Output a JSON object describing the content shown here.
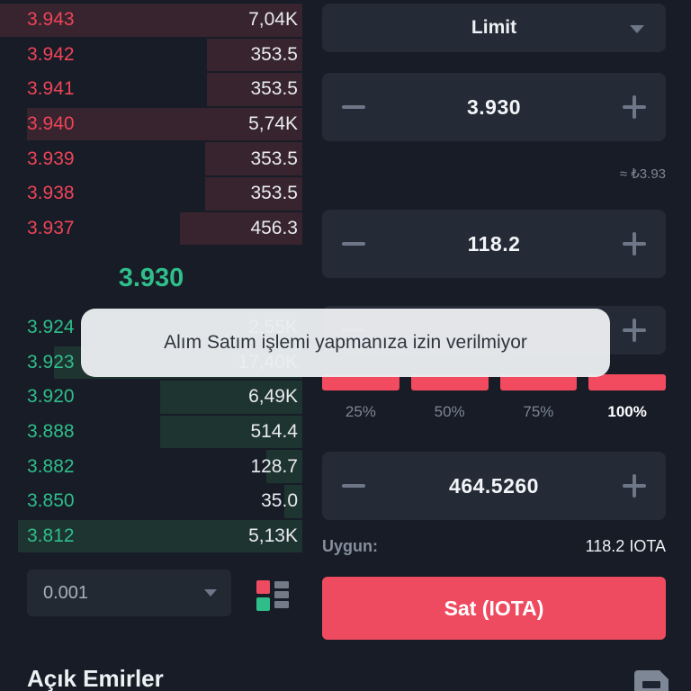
{
  "order_book": {
    "asks": [
      {
        "price": "3.943",
        "amount": "7,04K",
        "depth": 336
      },
      {
        "price": "3.942",
        "amount": "353.5",
        "depth": 106
      },
      {
        "price": "3.941",
        "amount": "353.5",
        "depth": 106
      },
      {
        "price": "3.940",
        "amount": "5,74K",
        "depth": 306
      },
      {
        "price": "3.939",
        "amount": "353.5",
        "depth": 108
      },
      {
        "price": "3.938",
        "amount": "353.5",
        "depth": 108
      },
      {
        "price": "3.937",
        "amount": "456.3",
        "depth": 136
      }
    ],
    "last_price": "3.930",
    "bids": [
      {
        "price": "3.924",
        "amount": "2,55K",
        "depth": 241
      },
      {
        "price": "3.923",
        "amount": "17,40K",
        "depth": 276
      },
      {
        "price": "3.920",
        "amount": "6,49K",
        "depth": 158
      },
      {
        "price": "3.888",
        "amount": "514.4",
        "depth": 158
      },
      {
        "price": "3.882",
        "amount": "128.7",
        "depth": 40
      },
      {
        "price": "3.850",
        "amount": "35.0",
        "depth": 20
      },
      {
        "price": "3.812",
        "amount": "5,13K",
        "depth": 316
      }
    ],
    "tick_size": "0.001"
  },
  "trade_panel": {
    "order_type": "Limit",
    "price": {
      "value": "3.930",
      "approx": "≈ ₺3.93"
    },
    "amount": {
      "value": "118.2"
    },
    "percent_options": [
      {
        "label": "25%",
        "active": false
      },
      {
        "label": "50%",
        "active": false
      },
      {
        "label": "75%",
        "active": false
      },
      {
        "label": "100%",
        "active": true
      }
    ],
    "total": {
      "value": "464.5260"
    },
    "available_label": "Uygun:",
    "available_value": "118.2 IOTA",
    "sell_button_label": "Sat (IOTA)"
  },
  "toast": {
    "message": "Alım Satım işlemi yapmanıza izin verilmiyor"
  },
  "open_orders": {
    "title": "Açık Emirler"
  },
  "icons": {
    "caret_down": "▾",
    "minus": "−",
    "plus": "+",
    "order_book_layout": "orderbook-layout-toggle",
    "open_orders_doc": "document"
  },
  "colors": {
    "page_bg": "#171c26",
    "box_bg": "#242b36",
    "ask_red": "#ef4459",
    "bid_green": "#2fbe8a",
    "button_red": "#ef4b60",
    "ask_depth_bg": "#37242e",
    "bid_depth_bg": "#1e3431",
    "toast_bg": "#ebedf0"
  }
}
